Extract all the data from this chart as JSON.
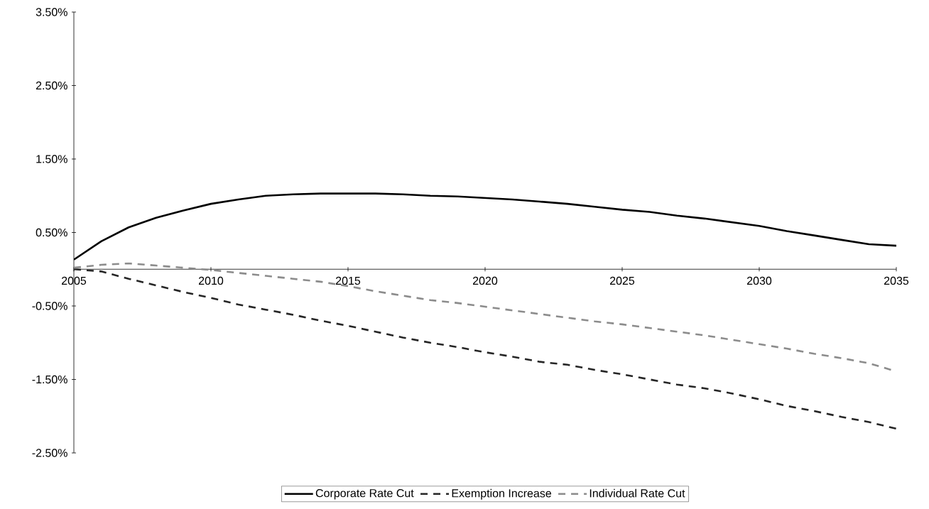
{
  "chart_data": {
    "type": "line",
    "x": [
      2005,
      2006,
      2007,
      2008,
      2009,
      2010,
      2011,
      2012,
      2013,
      2014,
      2015,
      2016,
      2017,
      2018,
      2019,
      2020,
      2021,
      2022,
      2023,
      2024,
      2025,
      2026,
      2027,
      2028,
      2029,
      2030,
      2031,
      2032,
      2033,
      2034,
      2035
    ],
    "series": [
      {
        "name": "Corporate Rate Cut",
        "color": "#000000",
        "line_style": "solid",
        "values": [
          0.13,
          0.38,
          0.57,
          0.7,
          0.8,
          0.89,
          0.95,
          1.0,
          1.02,
          1.03,
          1.03,
          1.03,
          1.02,
          1.0,
          0.99,
          0.97,
          0.95,
          0.92,
          0.89,
          0.85,
          0.81,
          0.78,
          0.73,
          0.69,
          0.64,
          0.59,
          0.52,
          0.46,
          0.4,
          0.34,
          0.32
        ]
      },
      {
        "name": "Exemption Increase",
        "color": "#262626",
        "line_style": "dashed",
        "values": [
          0.0,
          -0.03,
          -0.13,
          -0.22,
          -0.31,
          -0.39,
          -0.48,
          -0.55,
          -0.62,
          -0.7,
          -0.77,
          -0.85,
          -0.93,
          -1.0,
          -1.06,
          -1.13,
          -1.19,
          -1.26,
          -1.3,
          -1.37,
          -1.43,
          -1.5,
          -1.57,
          -1.62,
          -1.69,
          -1.77,
          -1.86,
          -1.93,
          -2.01,
          -2.08,
          -2.17
        ]
      },
      {
        "name": "Individual Rate Cut",
        "color": "#8c8c8c",
        "line_style": "dashed",
        "values": [
          0.02,
          0.06,
          0.08,
          0.05,
          0.02,
          -0.01,
          -0.05,
          -0.09,
          -0.13,
          -0.17,
          -0.23,
          -0.3,
          -0.36,
          -0.42,
          -0.46,
          -0.51,
          -0.56,
          -0.61,
          -0.66,
          -0.71,
          -0.75,
          -0.8,
          -0.85,
          -0.9,
          -0.96,
          -1.02,
          -1.08,
          -1.15,
          -1.21,
          -1.28,
          -1.39
        ]
      }
    ],
    "xlim": [
      2005,
      2035
    ],
    "xticks": [
      2005,
      2010,
      2015,
      2020,
      2025,
      2030,
      2035
    ],
    "ylim": [
      -2.5,
      3.5
    ],
    "yticks": [
      {
        "value": -2.5,
        "label": "-2.50%"
      },
      {
        "value": -1.5,
        "label": "-1.50%"
      },
      {
        "value": -0.5,
        "label": "-0.50%"
      },
      {
        "value": 0.5,
        "label": "0.50%"
      },
      {
        "value": 1.5,
        "label": "1.50%"
      },
      {
        "value": 2.5,
        "label": "2.50%"
      },
      {
        "value": 3.5,
        "label": "3.50%"
      }
    ],
    "grid": false,
    "legend": "bottom",
    "marker": "none"
  }
}
